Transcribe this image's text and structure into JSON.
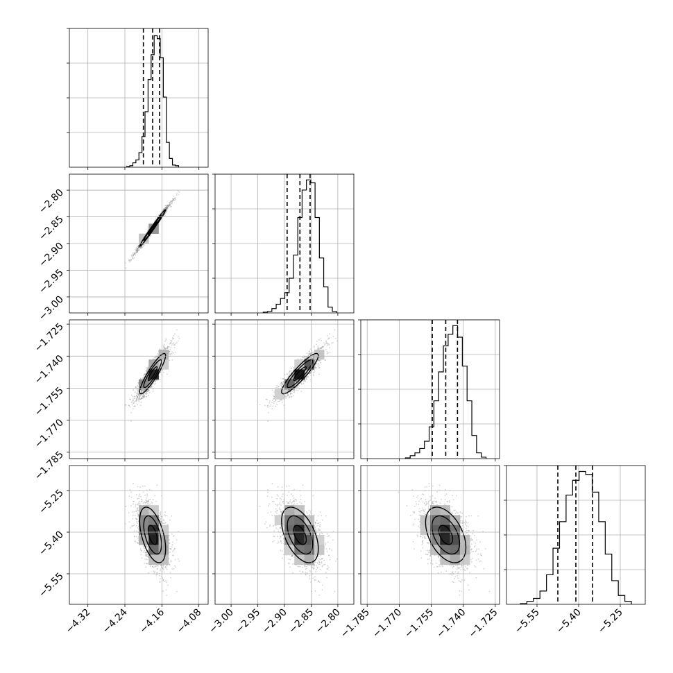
{
  "chart_data": {
    "type": "corner",
    "parameters": [
      {
        "index": 0,
        "range": [
          -4.36,
          -4.06
        ],
        "ticks": [
          -4.32,
          -4.24,
          -4.16,
          -4.08
        ],
        "tick_labels": [
          "−4.32",
          "−4.24",
          "−4.16",
          "−4.08"
        ],
        "quantiles": [
          -4.2,
          -4.18,
          -4.165
        ],
        "hist": [
          0.5,
          1,
          3,
          5,
          10,
          21,
          38,
          60,
          77,
          90,
          88,
          75,
          48,
          17,
          6,
          1.5,
          1
        ],
        "hist_ymax": 95
      },
      {
        "index": 1,
        "range": [
          -3.03,
          -2.77
        ],
        "ticks": [
          -3.0,
          -2.95,
          -2.9,
          -2.85,
          -2.8
        ],
        "tick_labels": [
          "−3.00",
          "−2.95",
          "−2.90",
          "−2.85",
          "−2.80"
        ],
        "quantiles": [
          -2.895,
          -2.871,
          -2.852
        ],
        "hist": [
          0.5,
          1,
          3,
          6,
          10,
          14,
          24,
          40,
          66,
          85,
          92,
          90,
          66,
          38,
          18,
          4,
          1
        ],
        "hist_ymax": 96
      },
      {
        "index": 2,
        "range": [
          -1.788,
          -1.723
        ],
        "ticks": [
          -1.785,
          -1.77,
          -1.755,
          -1.74,
          -1.725
        ],
        "tick_labels": [
          "−1.785",
          "−1.770",
          "−1.755",
          "−1.740",
          "−1.725"
        ],
        "quantiles": [
          -1.7545,
          -1.7482,
          -1.7427
        ],
        "hist": [
          0.5,
          2,
          4,
          7,
          12,
          22,
          40,
          60,
          78,
          86,
          92,
          84,
          64,
          40,
          16,
          4,
          1
        ],
        "hist_ymax": 96
      },
      {
        "index": 3,
        "range": [
          -5.66,
          -5.16
        ],
        "ticks": [
          -5.55,
          -5.4,
          -5.25
        ],
        "tick_labels": [
          "−5.55",
          "−5.40",
          "−5.25"
        ],
        "quantiles": [
          -5.475,
          -5.41,
          -5.35
        ],
        "hist": [
          0.5,
          2,
          4,
          9,
          20,
          38,
          56,
          74,
          84,
          90,
          88,
          76,
          56,
          34,
          16,
          6,
          2
        ],
        "hist_ymax": 94
      }
    ],
    "correlations": [
      [
        1,
        0.99,
        0.9,
        -0.5
      ],
      [
        0.99,
        1,
        0.9,
        -0.5
      ],
      [
        0.9,
        0.9,
        1,
        -0.45
      ],
      [
        -0.5,
        -0.5,
        -0.45,
        1
      ]
    ],
    "hist_yticks_fraction": [
      0.25,
      0.5,
      0.75,
      1.0
    ],
    "grid": true,
    "histogram_style": "step",
    "contour_levels": 3,
    "colors": {
      "ink": "#000000",
      "grid": "#b0b0b0",
      "point": "#7a7a7a"
    }
  }
}
